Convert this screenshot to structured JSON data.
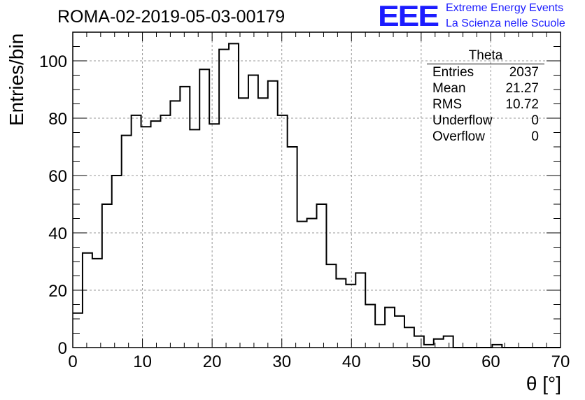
{
  "header": {
    "run_title": "ROMA-02-2019-05-03-00179",
    "logo_text": "EEE",
    "tagline_1": "Extreme Energy Events",
    "tagline_2": "La Scienza nelle Scuole",
    "brand_color": "#1c1cff"
  },
  "stats_box": {
    "title": "Theta",
    "rows": [
      {
        "label": "Entries",
        "value": "2037"
      },
      {
        "label": "Mean",
        "value": "21.27"
      },
      {
        "label": "RMS",
        "value": "10.72"
      },
      {
        "label": "Underflow",
        "value": "0"
      },
      {
        "label": "Overflow",
        "value": "0"
      }
    ]
  },
  "chart_data": {
    "type": "bar",
    "style": "step-histogram",
    "xlabel": "θ [°]",
    "ylabel": "Entries/bin",
    "xlim": [
      0,
      70
    ],
    "ylim": [
      0,
      110
    ],
    "bin_width": 1.4,
    "xticks": [
      0,
      10,
      20,
      30,
      40,
      50,
      60,
      70
    ],
    "yticks": [
      0,
      20,
      40,
      60,
      80,
      100
    ],
    "grid": true,
    "values": [
      12,
      33,
      31,
      50,
      60,
      74,
      81,
      77,
      79,
      81,
      86,
      91,
      76,
      97,
      78,
      104,
      106,
      87,
      95,
      87,
      93,
      81,
      70,
      44,
      45,
      50,
      29,
      24,
      22,
      26,
      15,
      8,
      14,
      11,
      7,
      4,
      1,
      3,
      4,
      0,
      0,
      0,
      0,
      1,
      0,
      0,
      0,
      0,
      0,
      0
    ]
  }
}
